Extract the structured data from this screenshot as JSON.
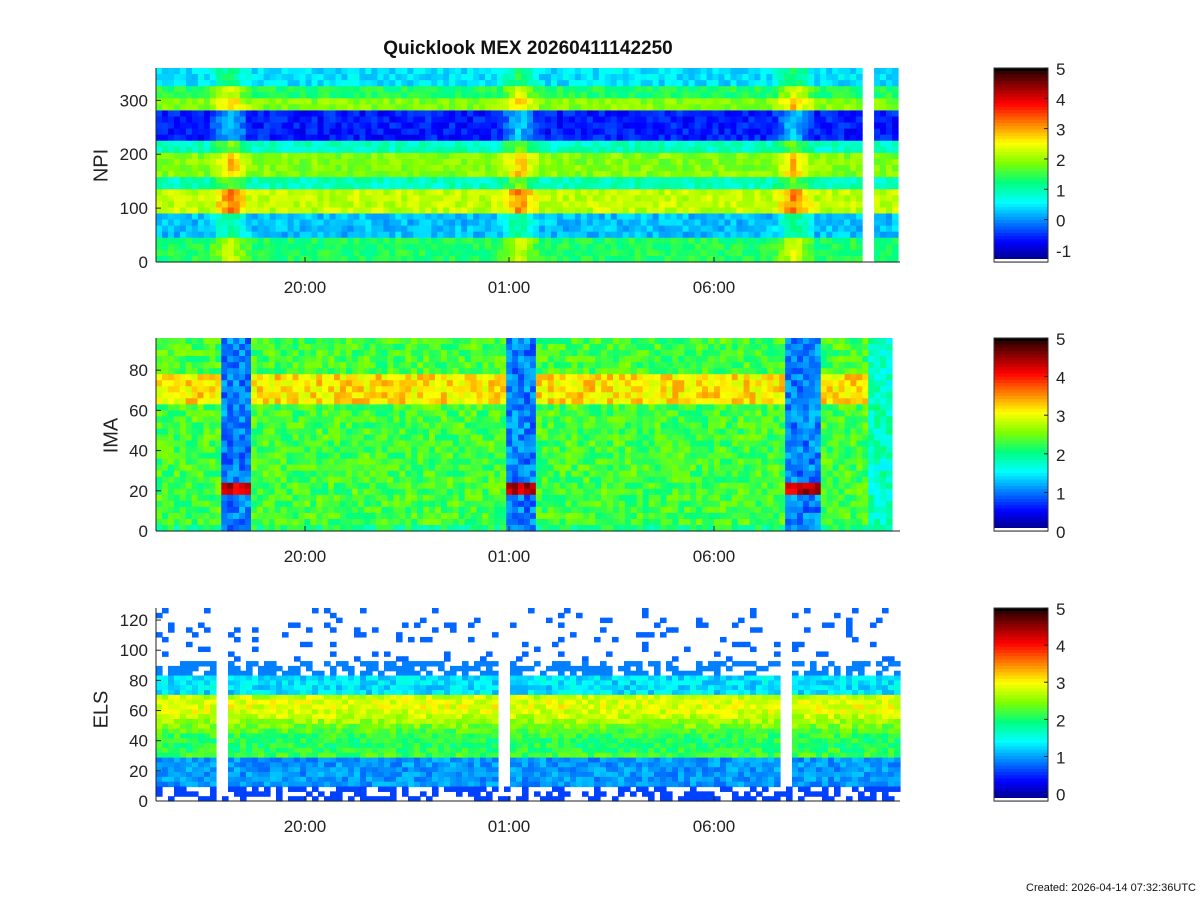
{
  "title": "Quicklook MEX 20260411142250",
  "created": "Created: 2026-04-14 07:32:36UTC",
  "colormap": [
    "#00007f",
    "#0000ff",
    "#007fff",
    "#00ffff",
    "#00ff7f",
    "#7fff00",
    "#ffff00",
    "#ff7f00",
    "#ff0000",
    "#7f0000",
    "#000000"
  ],
  "chart_data": [
    {
      "type": "heatmap",
      "ylabel": "NPI",
      "xticks": [
        "20:00",
        "01:00",
        "06:00"
      ],
      "yticks": [
        0,
        100,
        200,
        300
      ],
      "ylim": [
        0,
        360
      ],
      "colorbar": {
        "ticks": [
          -1,
          0,
          1,
          2,
          3,
          4,
          5
        ],
        "range": [
          -1.4,
          5
        ]
      }
    },
    {
      "type": "heatmap",
      "ylabel": "IMA",
      "xticks": [
        "20:00",
        "01:00",
        "06:00"
      ],
      "yticks": [
        0,
        20,
        40,
        60,
        80
      ],
      "ylim": [
        0,
        96
      ],
      "colorbar": {
        "ticks": [
          0,
          1,
          2,
          3,
          4,
          5
        ],
        "range": [
          0,
          5
        ]
      }
    },
    {
      "type": "heatmap",
      "ylabel": "ELS",
      "xticks": [
        "20:00",
        "01:00",
        "06:00"
      ],
      "yticks": [
        0,
        20,
        40,
        60,
        80,
        100,
        120
      ],
      "ylim": [
        0,
        128
      ],
      "colorbar": {
        "ticks": [
          0,
          1,
          2,
          3,
          4,
          5
        ],
        "range": [
          -0.2,
          5
        ]
      }
    }
  ]
}
